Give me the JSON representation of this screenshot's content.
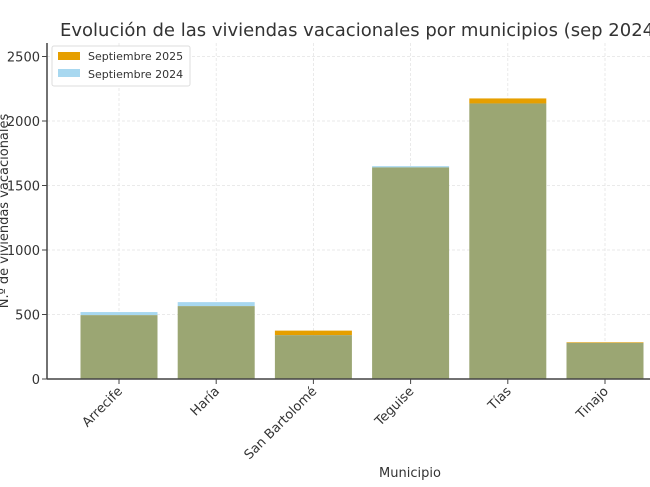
{
  "chart_data": {
    "type": "bar",
    "title": "Evolución de las viviendas vacacionales por municipios (sep 2024",
    "xlabel": "Municipio",
    "ylabel": "N.º de viviendas vacacionales",
    "categories": [
      "Arrecife",
      "Haría",
      "San Bartolomé",
      "Teguise",
      "Tías",
      "Tinajo"
    ],
    "series": [
      {
        "name": "Septiembre 2025",
        "values": [
          495,
          565,
          375,
          1640,
          2175,
          285
        ]
      },
      {
        "name": "Septiembre 2024",
        "values": [
          519,
          596,
          340,
          1650,
          2136,
          280
        ]
      }
    ],
    "ylim": [
      0,
      2600
    ],
    "yticks": [
      0,
      500,
      1000,
      1500,
      2000,
      2500
    ],
    "grid": true,
    "legend": "top-left",
    "colors": {
      "Septiembre 2025": "#E69F00",
      "Septiembre 2024": "#A8D8F0",
      "overlap": "#9BA673"
    }
  }
}
